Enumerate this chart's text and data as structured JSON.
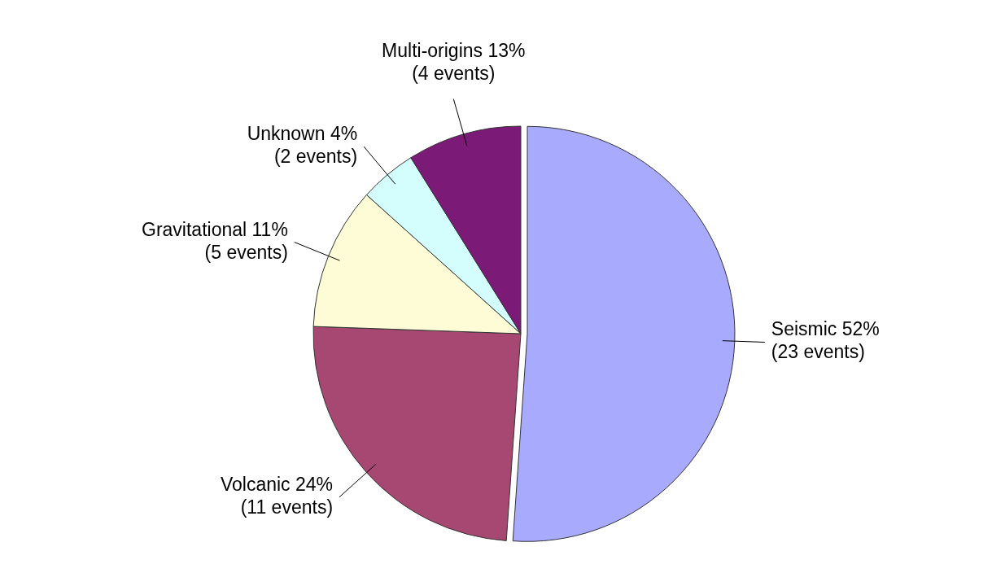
{
  "chart_data": {
    "type": "pie",
    "categories": [
      "Seismic",
      "Volcanic",
      "Gravitational",
      "Unknown",
      "Multi-origins"
    ],
    "values": [
      23,
      11,
      5,
      2,
      4
    ],
    "value_labels": [
      "52%\n(23 events)",
      "24%\n(11 events)",
      "11%\n(5 events)",
      "4%\n(2 events)",
      "13%\n(4 events)"
    ],
    "colors": [
      "#a8abfd",
      "#a64872",
      "#fefcd6",
      "#d4fefe",
      "#7b1a77"
    ]
  }
}
